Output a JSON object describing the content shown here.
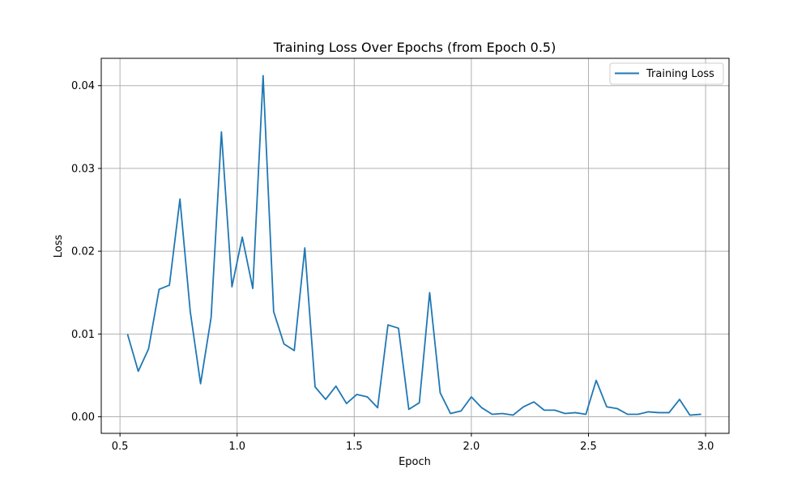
{
  "chart_data": {
    "type": "line",
    "title": "Training Loss Over Epochs (from Epoch 0.5)",
    "xlabel": "Epoch",
    "ylabel": "Loss",
    "xlim": [
      0.42,
      3.1
    ],
    "ylim": [
      -0.002,
      0.0433
    ],
    "xticks": [
      0.5,
      1.0,
      1.5,
      2.0,
      2.5,
      3.0
    ],
    "xtick_labels": [
      "0.5",
      "1.0",
      "1.5",
      "2.0",
      "2.5",
      "3.0"
    ],
    "yticks": [
      0.0,
      0.01,
      0.02,
      0.03,
      0.04
    ],
    "ytick_labels": [
      "0.00",
      "0.01",
      "0.02",
      "0.03",
      "0.04"
    ],
    "grid": true,
    "legend_position": "top-right",
    "series": [
      {
        "name": "Training Loss",
        "color": "#1f77b4",
        "x": [
          0.533,
          0.578,
          0.622,
          0.667,
          0.711,
          0.756,
          0.8,
          0.844,
          0.889,
          0.933,
          0.978,
          1.022,
          1.067,
          1.111,
          1.156,
          1.2,
          1.244,
          1.289,
          1.333,
          1.378,
          1.422,
          1.467,
          1.511,
          1.556,
          1.6,
          1.644,
          1.689,
          1.733,
          1.778,
          1.822,
          1.867,
          1.911,
          1.956,
          2.0,
          2.044,
          2.089,
          2.133,
          2.178,
          2.222,
          2.267,
          2.311,
          2.356,
          2.4,
          2.444,
          2.489,
          2.533,
          2.578,
          2.622,
          2.667,
          2.711,
          2.756,
          2.8,
          2.844,
          2.889,
          2.933,
          2.978
        ],
        "values": [
          0.0099,
          0.0055,
          0.0082,
          0.0154,
          0.0159,
          0.0263,
          0.0127,
          0.004,
          0.012,
          0.0344,
          0.0157,
          0.0217,
          0.0155,
          0.0412,
          0.0127,
          0.0088,
          0.008,
          0.0204,
          0.0036,
          0.0021,
          0.0037,
          0.0016,
          0.0027,
          0.0024,
          0.0011,
          0.0111,
          0.0107,
          0.0009,
          0.0017,
          0.015,
          0.0029,
          0.0004,
          0.0007,
          0.0024,
          0.0011,
          0.0003,
          0.0004,
          0.0002,
          0.0012,
          0.0018,
          0.0008,
          0.0008,
          0.0004,
          0.0005,
          0.0003,
          0.0044,
          0.0012,
          0.001,
          0.0003,
          0.0003,
          0.0006,
          0.0005,
          0.0005,
          0.0021,
          0.0002,
          0.0003
        ]
      }
    ]
  }
}
